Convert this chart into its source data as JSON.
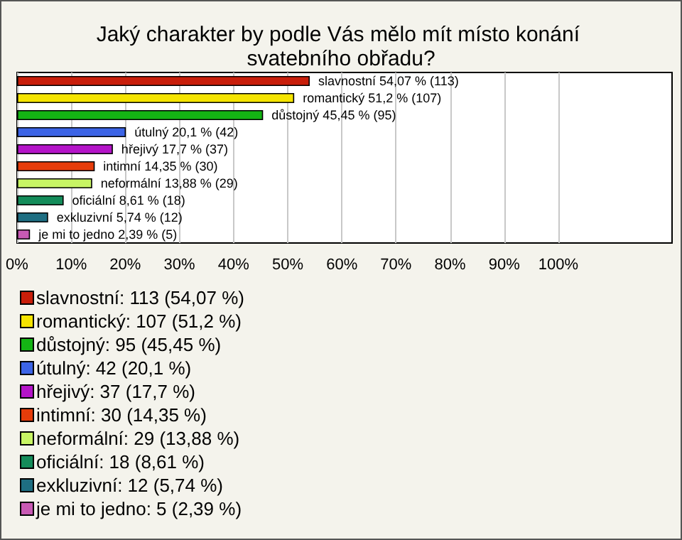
{
  "chart_data": {
    "type": "bar",
    "orientation": "horizontal",
    "title": "Jaký charakter by podle Vás mělo mít místo konání svatebního obřadu?",
    "categories": [
      null,
      null,
      null,
      null,
      null,
      null,
      null,
      null,
      null,
      null
    ],
    "series": [
      {
        "name": "slavnostní: 113 (54,07 %)",
        "color": "#c81e0a",
        "values": [
          54.07,
          null,
          null,
          null,
          null,
          null,
          null,
          null,
          null,
          null
        ],
        "value_labels": [
          "slavnostní 54,07 % (113)",
          null,
          null,
          null,
          null,
          null,
          null,
          null,
          null,
          null
        ]
      },
      {
        "name": "romantický: 107 (51,2 %)",
        "color": "#f5e400",
        "values": [
          null,
          51.2,
          null,
          null,
          null,
          null,
          null,
          null,
          null,
          null
        ],
        "value_labels": [
          null,
          "romantický 51,2 % (107)",
          null,
          null,
          null,
          null,
          null,
          null,
          null,
          null
        ]
      },
      {
        "name": "důstojný: 95 (45,45 %)",
        "color": "#14b414",
        "values": [
          null,
          null,
          45.45,
          null,
          null,
          null,
          null,
          null,
          null,
          null
        ],
        "value_labels": [
          null,
          null,
          "důstojný 45,45 % (95)",
          null,
          null,
          null,
          null,
          null,
          null,
          null
        ]
      },
      {
        "name": "útulný: 42 (20,1 %)",
        "color": "#3c64e6",
        "values": [
          null,
          null,
          null,
          20.1,
          null,
          null,
          null,
          null,
          null,
          null
        ],
        "value_labels": [
          null,
          null,
          null,
          "útulný 20,1 % (42)",
          null,
          null,
          null,
          null,
          null,
          null
        ]
      },
      {
        "name": "hřejivý: 37 (17,7 %)",
        "color": "#b414c8",
        "values": [
          null,
          null,
          null,
          null,
          17.7,
          null,
          null,
          null,
          null,
          null
        ],
        "value_labels": [
          null,
          null,
          null,
          null,
          "hřejivý 17,7 % (37)",
          null,
          null,
          null,
          null,
          null
        ]
      },
      {
        "name": "intimní: 30 (14,35 %)",
        "color": "#e63c0a",
        "values": [
          null,
          null,
          null,
          null,
          null,
          14.35,
          null,
          null,
          null,
          null
        ],
        "value_labels": [
          null,
          null,
          null,
          null,
          null,
          "intimní 14,35 % (30)",
          null,
          null,
          null,
          null
        ]
      },
      {
        "name": "neformální: 29 (13,88 %)",
        "color": "#c8f564",
        "values": [
          null,
          null,
          null,
          null,
          null,
          null,
          13.88,
          null,
          null,
          null
        ],
        "value_labels": [
          null,
          null,
          null,
          null,
          null,
          null,
          "neformální 13,88 % (29)",
          null,
          null,
          null
        ]
      },
      {
        "name": "oficiální: 18 (8,61 %)",
        "color": "#148c5a",
        "values": [
          null,
          null,
          null,
          null,
          null,
          null,
          null,
          8.61,
          null,
          null
        ],
        "value_labels": [
          null,
          null,
          null,
          null,
          null,
          null,
          null,
          "oficiální 8,61 % (18)",
          null,
          null
        ]
      },
      {
        "name": "exkluzivní: 12 (5,74 %)",
        "color": "#1e6e82",
        "values": [
          null,
          null,
          null,
          null,
          null,
          null,
          null,
          null,
          5.74,
          null
        ],
        "value_labels": [
          null,
          null,
          null,
          null,
          null,
          null,
          null,
          null,
          "exkluzivní 5,74 % (12)",
          null
        ]
      },
      {
        "name": "je mi to jedno: 5 (2,39 %)",
        "color": "#c85ab4",
        "values": [
          null,
          null,
          null,
          null,
          null,
          null,
          null,
          null,
          null,
          2.39
        ],
        "value_labels": [
          null,
          null,
          null,
          null,
          null,
          null,
          null,
          null,
          null,
          "je mi to jedno 2,39 % (5)"
        ]
      }
    ],
    "xlim": [
      0,
      121
    ],
    "xticks": [
      {
        "value": 0,
        "label": "0%"
      },
      {
        "value": 10,
        "label": "10%"
      },
      {
        "value": 20,
        "label": "20%"
      },
      {
        "value": 30,
        "label": "30%"
      },
      {
        "value": 40,
        "label": "40%"
      },
      {
        "value": 50,
        "label": "50%"
      },
      {
        "value": 60,
        "label": "60%"
      },
      {
        "value": 70,
        "label": "70%"
      },
      {
        "value": 80,
        "label": "80%"
      },
      {
        "value": 90,
        "label": "90%"
      },
      {
        "value": 100,
        "label": "100%"
      }
    ],
    "grid": "x",
    "legend": "bottom left"
  }
}
